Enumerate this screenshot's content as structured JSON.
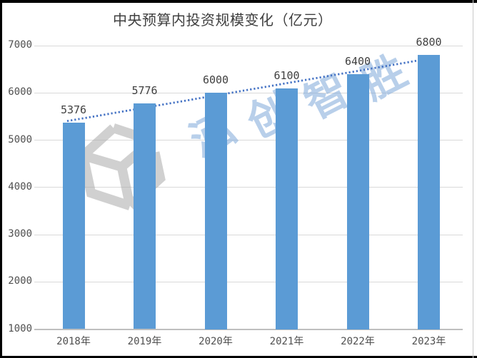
{
  "chart_data": {
    "type": "bar",
    "title": "中央预算内投资规模变化（亿元）",
    "categories": [
      "2018年",
      "2019年",
      "2020年",
      "2021年",
      "2022年",
      "2023年"
    ],
    "values": [
      5376,
      5776,
      6000,
      6100,
      6400,
      6800
    ],
    "data_labels": [
      "5376",
      "5776",
      "6000",
      "6100",
      "6400",
      "6800"
    ],
    "ylim": [
      1000,
      7000
    ],
    "yticks": [
      7000,
      6000,
      5000,
      4000,
      3000,
      2000,
      1000
    ],
    "grid": true,
    "legend": false,
    "xlabel": "",
    "ylabel": "",
    "bar_color": "#5B9BD5",
    "grid_color": "#D9D9D9",
    "axis_color": "#BFBFBF",
    "tick_color": "#4F4F4F",
    "label_color": "#404040",
    "title_color": "#3F3F3F",
    "trendline": {
      "type": "linear",
      "style": "dotted",
      "color": "#4472C4"
    }
  },
  "watermark": {
    "text": "泓创智胜",
    "text_color": "#7DA7D9",
    "logo": "hc-cube-logo",
    "logo_color": "#ABABAB"
  }
}
